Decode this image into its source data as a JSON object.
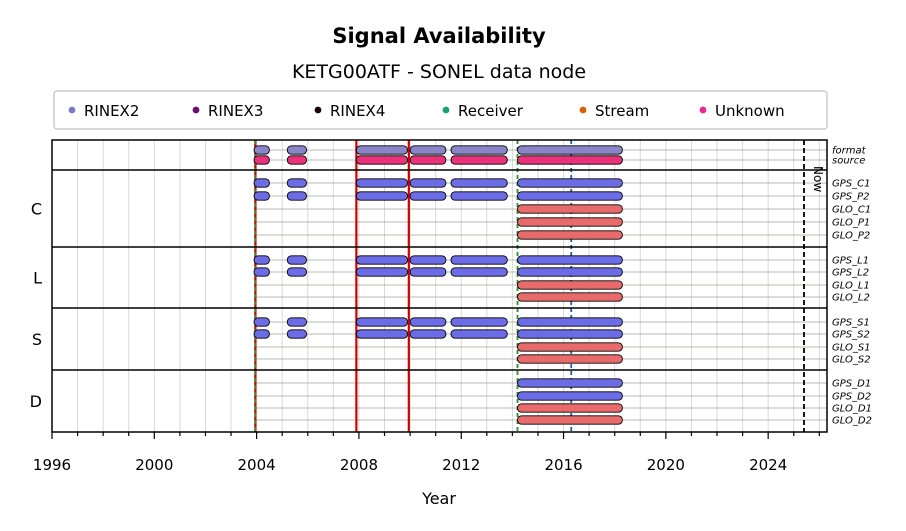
{
  "chart_data": {
    "type": "timeline",
    "title": "Signal Availability",
    "subtitle": "KETG00ATF - SONEL data node",
    "xlabel": "Year",
    "xlim": [
      1996,
      2026.3
    ],
    "x_ticks": [
      1996,
      2000,
      2004,
      2008,
      2012,
      2016,
      2020,
      2024
    ],
    "x_tick_labels": [
      "1996",
      "2000",
      "2004",
      "2008",
      "2012",
      "2016",
      "2020",
      "2024"
    ],
    "grid": true,
    "legend_position": "top",
    "legend": [
      {
        "label": "RINEX2",
        "color": "#7b7bc8"
      },
      {
        "label": "RINEX3",
        "color": "#6b0f6b"
      },
      {
        "label": "RINEX4",
        "color": "#1a0010"
      },
      {
        "label": "Receiver",
        "color": "#1b9e77"
      },
      {
        "label": "Stream",
        "color": "#d95f02"
      },
      {
        "label": "Unknown",
        "color": "#e7298a"
      }
    ],
    "colors": {
      "format_bar": "#8a84c8",
      "source_bar": "#e8327a",
      "gps_bar": "#6c6ce6",
      "glo_bar": "#e86a6a",
      "event_red": "#cc0000",
      "event_green": "#2e8b2e",
      "event_blue": "#1f5fa8",
      "now_line": "#000000"
    },
    "now_label": "Now",
    "now_x": 2025.4,
    "vertical_events": [
      {
        "x": 2003.95,
        "color": "red",
        "style": "solid"
      },
      {
        "x": 2003.95,
        "color": "green",
        "style": "dashed"
      },
      {
        "x": 2007.9,
        "color": "red",
        "style": "solid"
      },
      {
        "x": 2009.95,
        "color": "red",
        "style": "solid"
      },
      {
        "x": 2014.2,
        "color": "green",
        "style": "dashed"
      },
      {
        "x": 2016.3,
        "color": "blue",
        "style": "dashed"
      }
    ],
    "groups": [
      {
        "label": "",
        "rows": [
          {
            "name": "format",
            "bar": "format_bar",
            "segments": [
              [
                2003.9,
                2004.5
              ],
              [
                2005.2,
                2005.95
              ],
              [
                2007.9,
                2009.9
              ],
              [
                2010,
                2011.4
              ],
              [
                2011.6,
                2013.8
              ],
              [
                2014.2,
                2018.3
              ]
            ]
          },
          {
            "name": "source",
            "bar": "source_bar",
            "segments": [
              [
                2003.9,
                2004.5
              ],
              [
                2005.2,
                2005.95
              ],
              [
                2007.9,
                2009.9
              ],
              [
                2010,
                2011.4
              ],
              [
                2011.6,
                2013.8
              ],
              [
                2014.2,
                2018.3
              ]
            ]
          }
        ]
      },
      {
        "label": "C",
        "rows": [
          {
            "name": "GPS_C1",
            "bar": "gps_bar",
            "segments": [
              [
                2003.9,
                2004.5
              ],
              [
                2005.2,
                2005.95
              ],
              [
                2007.9,
                2009.9
              ],
              [
                2010,
                2011.4
              ],
              [
                2011.6,
                2013.8
              ],
              [
                2014.2,
                2018.3
              ]
            ]
          },
          {
            "name": "GPS_P2",
            "bar": "gps_bar",
            "segments": [
              [
                2003.9,
                2004.5
              ],
              [
                2005.2,
                2005.95
              ],
              [
                2007.9,
                2009.9
              ],
              [
                2010,
                2011.4
              ],
              [
                2011.6,
                2013.8
              ],
              [
                2014.2,
                2018.3
              ]
            ]
          },
          {
            "name": "GLO_C1",
            "bar": "glo_bar",
            "segments": [
              [
                2014.2,
                2018.3
              ]
            ]
          },
          {
            "name": "GLO_P1",
            "bar": "glo_bar",
            "segments": [
              [
                2014.2,
                2018.3
              ]
            ]
          },
          {
            "name": "GLO_P2",
            "bar": "glo_bar",
            "segments": [
              [
                2014.2,
                2018.3
              ]
            ]
          }
        ]
      },
      {
        "label": "L",
        "rows": [
          {
            "name": "GPS_L1",
            "bar": "gps_bar",
            "segments": [
              [
                2003.9,
                2004.5
              ],
              [
                2005.2,
                2005.95
              ],
              [
                2007.9,
                2009.9
              ],
              [
                2010,
                2011.4
              ],
              [
                2011.6,
                2013.8
              ],
              [
                2014.2,
                2018.3
              ]
            ]
          },
          {
            "name": "GPS_L2",
            "bar": "gps_bar",
            "segments": [
              [
                2003.9,
                2004.5
              ],
              [
                2005.2,
                2005.95
              ],
              [
                2007.9,
                2009.9
              ],
              [
                2010,
                2011.4
              ],
              [
                2011.6,
                2013.8
              ],
              [
                2014.2,
                2018.3
              ]
            ]
          },
          {
            "name": "GLO_L1",
            "bar": "glo_bar",
            "segments": [
              [
                2014.2,
                2018.3
              ]
            ]
          },
          {
            "name": "GLO_L2",
            "bar": "glo_bar",
            "segments": [
              [
                2014.2,
                2018.3
              ]
            ]
          }
        ]
      },
      {
        "label": "S",
        "rows": [
          {
            "name": "GPS_S1",
            "bar": "gps_bar",
            "segments": [
              [
                2003.9,
                2004.5
              ],
              [
                2005.2,
                2005.95
              ],
              [
                2007.9,
                2009.9
              ],
              [
                2010,
                2011.4
              ],
              [
                2011.6,
                2013.8
              ],
              [
                2014.2,
                2018.3
              ]
            ]
          },
          {
            "name": "GPS_S2",
            "bar": "gps_bar",
            "segments": [
              [
                2003.9,
                2004.5
              ],
              [
                2005.2,
                2005.95
              ],
              [
                2007.9,
                2009.9
              ],
              [
                2010,
                2011.4
              ],
              [
                2011.6,
                2013.8
              ],
              [
                2014.2,
                2018.3
              ]
            ]
          },
          {
            "name": "GLO_S1",
            "bar": "glo_bar",
            "segments": [
              [
                2014.2,
                2018.3
              ]
            ]
          },
          {
            "name": "GLO_S2",
            "bar": "glo_bar",
            "segments": [
              [
                2014.2,
                2018.3
              ]
            ]
          }
        ]
      },
      {
        "label": "D",
        "rows": [
          {
            "name": "GPS_D1",
            "bar": "gps_bar",
            "segments": [
              [
                2014.2,
                2018.3
              ]
            ]
          },
          {
            "name": "GPS_D2",
            "bar": "gps_bar",
            "segments": [
              [
                2014.2,
                2018.3
              ]
            ]
          },
          {
            "name": "GLO_D1",
            "bar": "glo_bar",
            "segments": [
              [
                2014.2,
                2018.3
              ]
            ]
          },
          {
            "name": "GLO_D2",
            "bar": "glo_bar",
            "segments": [
              [
                2014.2,
                2018.3
              ]
            ]
          }
        ]
      }
    ]
  }
}
